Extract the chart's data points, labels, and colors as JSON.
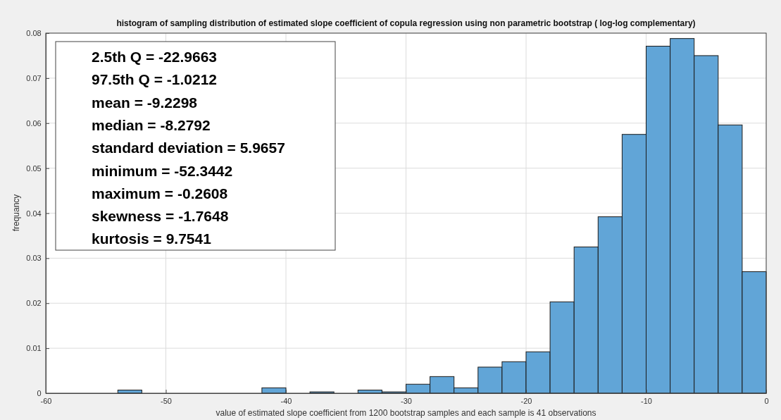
{
  "chart_data": {
    "type": "histogram",
    "title": "histogram of sampling distribution of estimated slope coefficient of copula regression using non parametric bootstrap ( log-log complementary)",
    "xlabel": "value of estimated slope coefficient from 1200 bootstrap samples  and each sample is 41 observations",
    "ylabel": "frequancy",
    "bins": [
      -54,
      -52,
      -50,
      -48,
      -46,
      -44,
      -42,
      -40,
      -38,
      -36,
      -34,
      -32,
      -30,
      -28,
      -26,
      -24,
      -22,
      -20,
      -18,
      -16,
      -14,
      -12,
      -10,
      -8,
      -6,
      -4,
      -2,
      0
    ],
    "values": [
      0.0007,
      0,
      0,
      0,
      0,
      0,
      0.0012,
      0,
      0.0003,
      0,
      0.0007,
      0.0003,
      0.002,
      0.0037,
      0.0012,
      0.0058,
      0.007,
      0.0092,
      0.0203,
      0.0325,
      0.0392,
      0.0575,
      0.0771,
      0.0788,
      0.075,
      0.0596,
      0.027
    ],
    "color": "#61a5d7",
    "xlim": [
      -60,
      0
    ],
    "xticks": [
      -60,
      -50,
      -40,
      -30,
      -20,
      -10,
      0
    ],
    "ylim": [
      0,
      0.08
    ],
    "yticks": [
      0,
      0.01,
      0.02,
      0.03,
      0.04,
      0.05,
      0.06,
      0.07,
      0.08
    ],
    "grid": true,
    "annotations": [
      "2.5th Q = -22.9663",
      "97.5th Q = -1.0212",
      "mean = -9.2298",
      "median = -8.2792",
      "standard deviation = 5.9657",
      "minimum = -52.3442",
      "maximum = -0.2608",
      "skewness = -1.7648",
      "kurtosis = 9.7541"
    ]
  }
}
